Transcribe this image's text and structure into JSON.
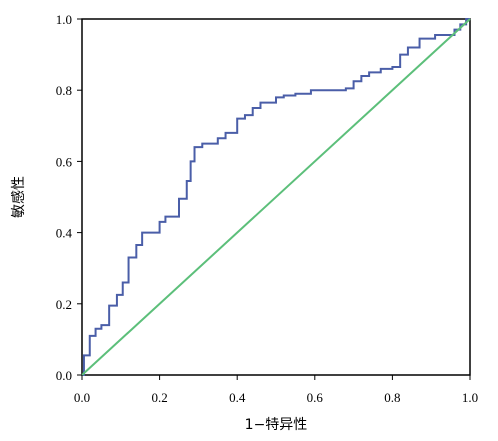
{
  "chart_data": {
    "type": "line",
    "title": "",
    "xlabel": "1−特异性",
    "ylabel": "敏感性",
    "xlim": [
      0,
      1
    ],
    "ylim": [
      0,
      1
    ],
    "xticks": [
      "0.0",
      "0.2",
      "0.4",
      "0.6",
      "0.8",
      "1.0"
    ],
    "yticks": [
      "0.0",
      "0.2",
      "0.4",
      "0.6",
      "0.8",
      "1.0"
    ],
    "grid": false,
    "legend": "none",
    "series": [
      {
        "color": "#4a5ea8",
        "step": true,
        "x": [
          0,
          0.005,
          0.02,
          0.035,
          0.05,
          0.07,
          0.09,
          0.105,
          0.12,
          0.14,
          0.155,
          0.17,
          0.2,
          0.215,
          0.25,
          0.27,
          0.28,
          0.29,
          0.31,
          0.35,
          0.37,
          0.4,
          0.42,
          0.44,
          0.46,
          0.5,
          0.52,
          0.55,
          0.59,
          0.61,
          0.68,
          0.7,
          0.72,
          0.74,
          0.77,
          0.8,
          0.82,
          0.84,
          0.87,
          0.91,
          0.96,
          0.975,
          0.99,
          1.0
        ],
        "y": [
          0,
          0.055,
          0.11,
          0.13,
          0.14,
          0.195,
          0.225,
          0.26,
          0.33,
          0.365,
          0.4,
          0.4,
          0.43,
          0.445,
          0.495,
          0.545,
          0.6,
          0.64,
          0.65,
          0.665,
          0.68,
          0.72,
          0.73,
          0.75,
          0.765,
          0.78,
          0.785,
          0.79,
          0.8,
          0.8,
          0.805,
          0.825,
          0.84,
          0.85,
          0.86,
          0.865,
          0.9,
          0.92,
          0.945,
          0.955,
          0.97,
          0.985,
          1.0,
          1.0
        ]
      },
      {
        "color": "#5cbf7a",
        "step": false,
        "x": [
          0,
          1
        ],
        "y": [
          0,
          1
        ]
      }
    ]
  }
}
